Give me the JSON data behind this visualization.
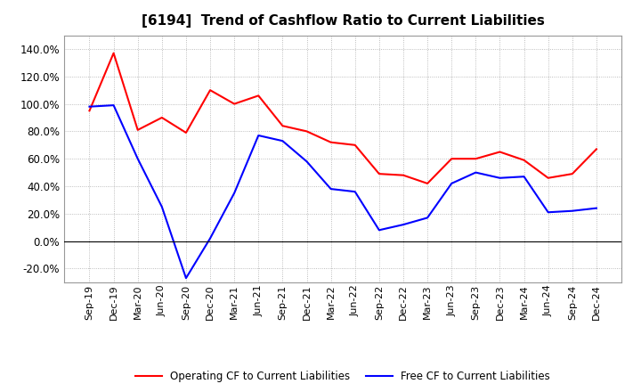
{
  "title": "[6194]  Trend of Cashflow Ratio to Current Liabilities",
  "x_labels": [
    "Sep-19",
    "Dec-19",
    "Mar-20",
    "Jun-20",
    "Sep-20",
    "Dec-20",
    "Mar-21",
    "Jun-21",
    "Sep-21",
    "Dec-21",
    "Mar-22",
    "Jun-22",
    "Sep-22",
    "Dec-22",
    "Mar-23",
    "Jun-23",
    "Sep-23",
    "Dec-23",
    "Mar-24",
    "Jun-24",
    "Sep-24",
    "Dec-24"
  ],
  "operating_cf": [
    0.95,
    1.37,
    0.81,
    0.9,
    0.79,
    1.1,
    1.0,
    1.06,
    0.84,
    0.8,
    0.72,
    0.7,
    0.49,
    0.48,
    0.42,
    0.6,
    0.6,
    0.65,
    0.59,
    0.46,
    0.49,
    0.67
  ],
  "free_cf": [
    0.98,
    0.99,
    0.6,
    0.25,
    -0.27,
    0.02,
    0.35,
    0.77,
    0.73,
    0.58,
    0.38,
    0.36,
    0.08,
    0.12,
    0.17,
    0.42,
    0.5,
    0.46,
    0.47,
    0.21,
    0.22,
    0.24
  ],
  "operating_color": "#FF0000",
  "free_color": "#0000FF",
  "background_color": "#FFFFFF",
  "grid_color": "#AAAAAA",
  "title_fontsize": 11,
  "legend_operating": "Operating CF to Current Liabilities",
  "legend_free": "Free CF to Current Liabilities",
  "ytick_vals": [
    -0.2,
    0.0,
    0.2,
    0.4,
    0.6,
    0.8,
    1.0,
    1.2,
    1.4
  ],
  "ylim_low": -0.3,
  "ylim_high": 1.5
}
